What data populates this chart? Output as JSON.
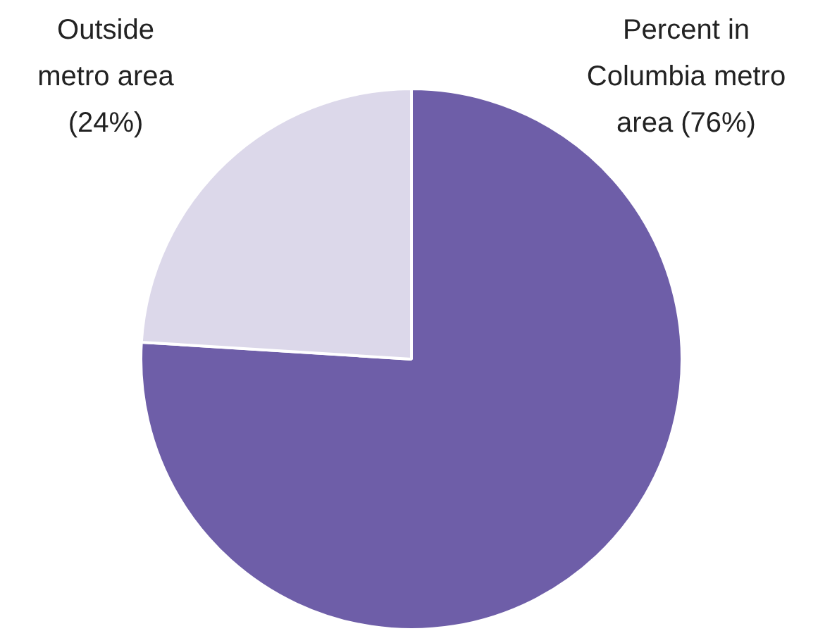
{
  "chart_data": {
    "type": "pie",
    "categories": [
      "Percent in Columbia metro area (76%)",
      "Outside metro area (24%)"
    ],
    "values": [
      76,
      24
    ],
    "colors": [
      "#6e5ea8",
      "#dcd8ea"
    ]
  }
}
